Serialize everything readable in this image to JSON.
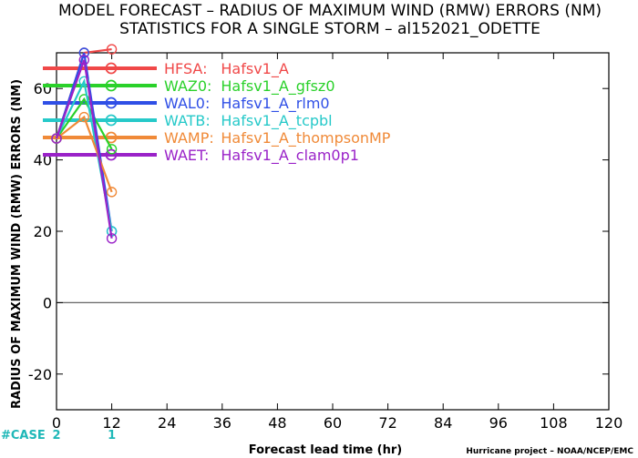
{
  "chart_data": {
    "type": "line",
    "title": "MODEL FORECAST – RADIUS OF MAXIMUM WIND (RMW) ERRORS (NM)",
    "subtitle": "STATISTICS FOR A SINGLE STORM – al152021_ODETTE",
    "xlabel": "Forecast lead time (hr)",
    "ylabel": "RADIUS OF MAXIMUM WIND (RMW) ERRORS (NM)",
    "xlim": [
      0,
      120
    ],
    "ylim": [
      -30,
      70
    ],
    "x_ticks": [
      0,
      12,
      24,
      36,
      48,
      60,
      72,
      84,
      96,
      108,
      120
    ],
    "y_ticks": [
      -20,
      0,
      20,
      40,
      60
    ],
    "x": [
      0,
      6,
      12
    ],
    "series": [
      {
        "name": "HFSA:",
        "label": "Hafsv1_A",
        "color": "#f04848",
        "values": [
          46,
          70,
          71
        ]
      },
      {
        "name": "WAZ0:",
        "label": "Hafsv1_A_gfsz0",
        "color": "#2ad12a",
        "values": [
          46,
          57,
          43
        ]
      },
      {
        "name": "WAL0:",
        "label": "Hafsv1_A_rlm0",
        "color": "#2f4fe6",
        "values": [
          46,
          70,
          20
        ]
      },
      {
        "name": "WATB:",
        "label": "Hafsv1_A_tcpbl",
        "color": "#26c9c9",
        "values": [
          46,
          62,
          20
        ]
      },
      {
        "name": "WAMP:",
        "label": "Hafsv1_A_thompsonMP",
        "color": "#f08a38",
        "values": [
          46,
          52,
          31
        ]
      },
      {
        "name": "WAET:",
        "label": "Hafsv1_A_clam0p1",
        "color": "#9a22c8",
        "values": [
          46,
          68,
          18
        ]
      }
    ],
    "cases": {
      "label": "#CASE",
      "x": [
        0,
        12
      ],
      "values": [
        "2",
        "1"
      ]
    },
    "credit": "Hurricane project – NOAA/NCEP/EMC",
    "grid": false,
    "legend_position": "top-left"
  }
}
